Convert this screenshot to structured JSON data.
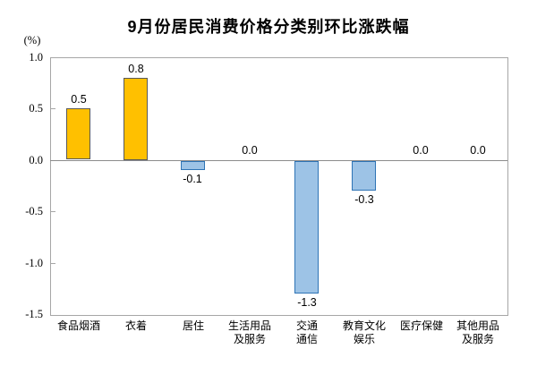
{
  "chart_data": {
    "type": "bar",
    "title": "9月份居民消费价格分类别环比涨跌幅",
    "ylabel": "(%)",
    "categories": [
      "食品烟酒",
      "衣着",
      "居住",
      "生活用品及服务",
      "交通通信",
      "教育文化娱乐",
      "医疗保健",
      "其他用品及服务"
    ],
    "category_lines": [
      [
        "食品烟酒"
      ],
      [
        "衣着"
      ],
      [
        "居住"
      ],
      [
        "生活用品",
        "及服务"
      ],
      [
        "交通",
        "通信"
      ],
      [
        "教育文化",
        "娱乐"
      ],
      [
        "医疗保健"
      ],
      [
        "其他用品",
        "及服务"
      ]
    ],
    "values": [
      0.5,
      0.8,
      -0.1,
      0.0,
      -1.3,
      -0.3,
      0.0,
      0.0
    ],
    "value_labels": [
      "0.5",
      "0.8",
      "-0.1",
      "0.0",
      "-1.3",
      "-0.3",
      "0.0",
      "0.0"
    ],
    "ylim": [
      -1.5,
      1.0
    ],
    "yticks": [
      1.0,
      0.5,
      0.0,
      -0.5,
      -1.0,
      -1.5
    ],
    "ytick_labels": [
      "1.0",
      "0.5",
      "0.0",
      "-0.5",
      "-1.0",
      "-1.5"
    ],
    "grid": false,
    "legend": null,
    "colors": {
      "positive_fill": "#FFC000",
      "positive_border": "#595959",
      "negative_fill": "#9DC3E6",
      "negative_border": "#2E74B5",
      "axis": "#A6A6A6",
      "zero_line": "#8C8C8C",
      "text": "#000000"
    }
  }
}
